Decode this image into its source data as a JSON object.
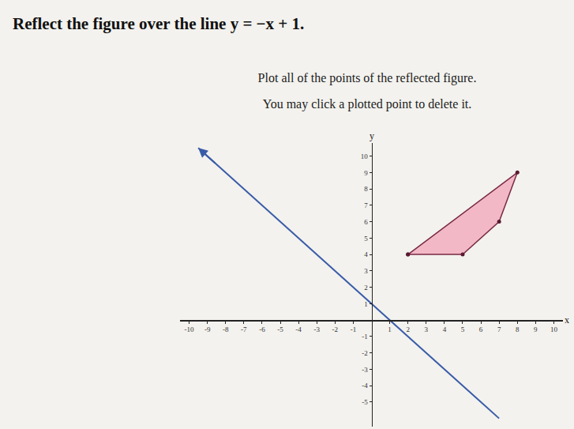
{
  "chart_data": {
    "type": "scatter",
    "title": "Reflect the figure over the line y = −x + 1.",
    "subtitle": [
      "Plot all of the points of the reflected figure.",
      "You may click a plotted point to delete it."
    ],
    "x_label": "x",
    "y_label": "y",
    "xlim": [
      -10.5,
      10.5
    ],
    "ylim": [
      -6.5,
      10.8
    ],
    "xticks": [
      -10,
      -9,
      -8,
      -7,
      -6,
      -5,
      -4,
      -3,
      -2,
      -1,
      1,
      2,
      3,
      4,
      5,
      6,
      7,
      8,
      9,
      10
    ],
    "yticks": [
      -5,
      -4,
      -3,
      -2,
      -1,
      1,
      2,
      3,
      4,
      5,
      6,
      7,
      8,
      9,
      10
    ],
    "grid": false,
    "series": [
      {
        "type": "line",
        "color": "#3a5ca8",
        "x": [
          -9.5,
          7
        ],
        "y": [
          10.5,
          -6
        ],
        "marker": "arrow",
        "line_style": "solid"
      },
      {
        "type": "polygon",
        "color": "#f2b8c6",
        "x": [
          2,
          8,
          7,
          5
        ],
        "y": [
          4,
          9,
          6,
          4
        ],
        "marker": "circle",
        "line_style": "solid"
      }
    ]
  }
}
